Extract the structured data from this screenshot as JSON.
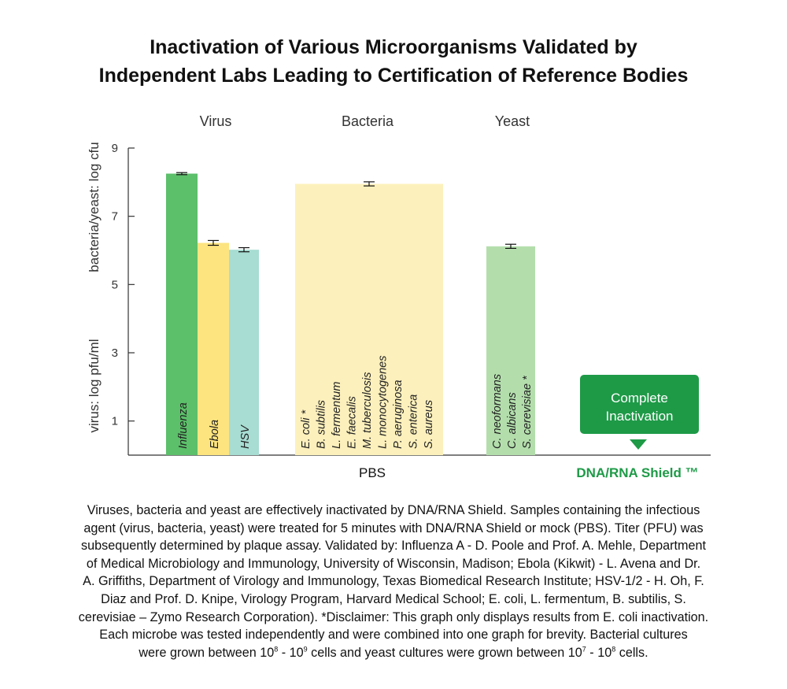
{
  "title": {
    "line1": "Inactivation of Various Microorganisms Validated by",
    "line2": "Independent Labs Leading to Certification of Reference Bodies"
  },
  "chart_data": {
    "type": "bar",
    "title": "Inactivation of Various Microorganisms Validated by Independent Labs Leading to Certification of Reference Bodies",
    "ylabel_virus": "virus: log pfu/ml",
    "ylabel_bacteria_yeast": "bacteria/yeast: log cfu",
    "ylim": [
      0,
      9
    ],
    "yticks": [
      1,
      3,
      5,
      7,
      9
    ],
    "groups": [
      "Virus",
      "Bacteria",
      "Yeast"
    ],
    "conditions": [
      "PBS",
      "DNA/RNA Shield ™"
    ],
    "bars": [
      {
        "group": "Virus",
        "condition": "PBS",
        "labels": [
          "Influenza"
        ],
        "value": 8.25,
        "error": 0.03,
        "color": "#5cbf6a"
      },
      {
        "group": "Virus",
        "condition": "PBS",
        "labels": [
          "Ebola"
        ],
        "value": 6.22,
        "error": 0.07,
        "color": "#fde47f"
      },
      {
        "group": "Virus",
        "condition": "PBS",
        "labels": [
          "HSV"
        ],
        "value": 6.02,
        "error": 0.06,
        "color": "#a7ddd3"
      },
      {
        "group": "Bacteria",
        "condition": "PBS",
        "labels": [
          "E. coli *",
          "B. subtilis",
          "L. fermentum",
          "E. faecalis",
          "M. tuberculosis",
          "L. monocytogenes",
          "P. aeruginosa",
          "S. enterica",
          "S. aureus"
        ],
        "value": 7.95,
        "error": 0.06,
        "color": "#fcf0bc"
      },
      {
        "group": "Yeast",
        "condition": "PBS",
        "labels": [
          "C. neoformans",
          "C. albicans",
          "S. cerevisiae *"
        ],
        "value": 6.12,
        "error": 0.06,
        "color": "#b3deac"
      }
    ],
    "annotation": {
      "text_line1": "Complete",
      "text_line2": "Inactivation",
      "color": "#1e9a47"
    }
  },
  "caption": {
    "line1": "Viruses, bacteria and yeast are effectively inactivated by DNA/RNA Shield. Samples containing the infectious",
    "line2": "agent (virus, bacteria, yeast) were treated for 5 minutes with DNA/RNA Shield or mock (PBS). Titer (PFU) was",
    "line3": "subsequently determined by plaque assay. Validated by: Influenza A - D. Poole and Prof. A. Mehle, Department",
    "line4": "of Medical Microbiology and Immunology, University of Wisconsin, Madison; Ebola (Kikwit) - L. Avena and Dr.",
    "line5": "A. Griffiths, Department of Virology and Immunology, Texas Biomedical Research Institute; HSV-1/2 - H. Oh, F.",
    "line6": "Diaz and Prof. D. Knipe, Virology Program, Harvard Medical School; E. coli, L. fermentum, B. subtilis, S.",
    "line7": "cerevisiae – Zymo Research Corporation). *Disclaimer: This graph only displays results from E. coli inactivation.",
    "line8": "Each microbe was tested independently and were combined into one graph for brevity. Bacterial cultures",
    "line9_a": "were grown between 10",
    "line9_exp1": "8",
    "line9_b": " - 10",
    "line9_exp2": "9",
    "line9_c": " cells and yeast cultures were grown between 10",
    "line9_exp3": "7",
    "line9_d": " - 10",
    "line9_exp4": "8",
    "line9_e": " cells."
  }
}
